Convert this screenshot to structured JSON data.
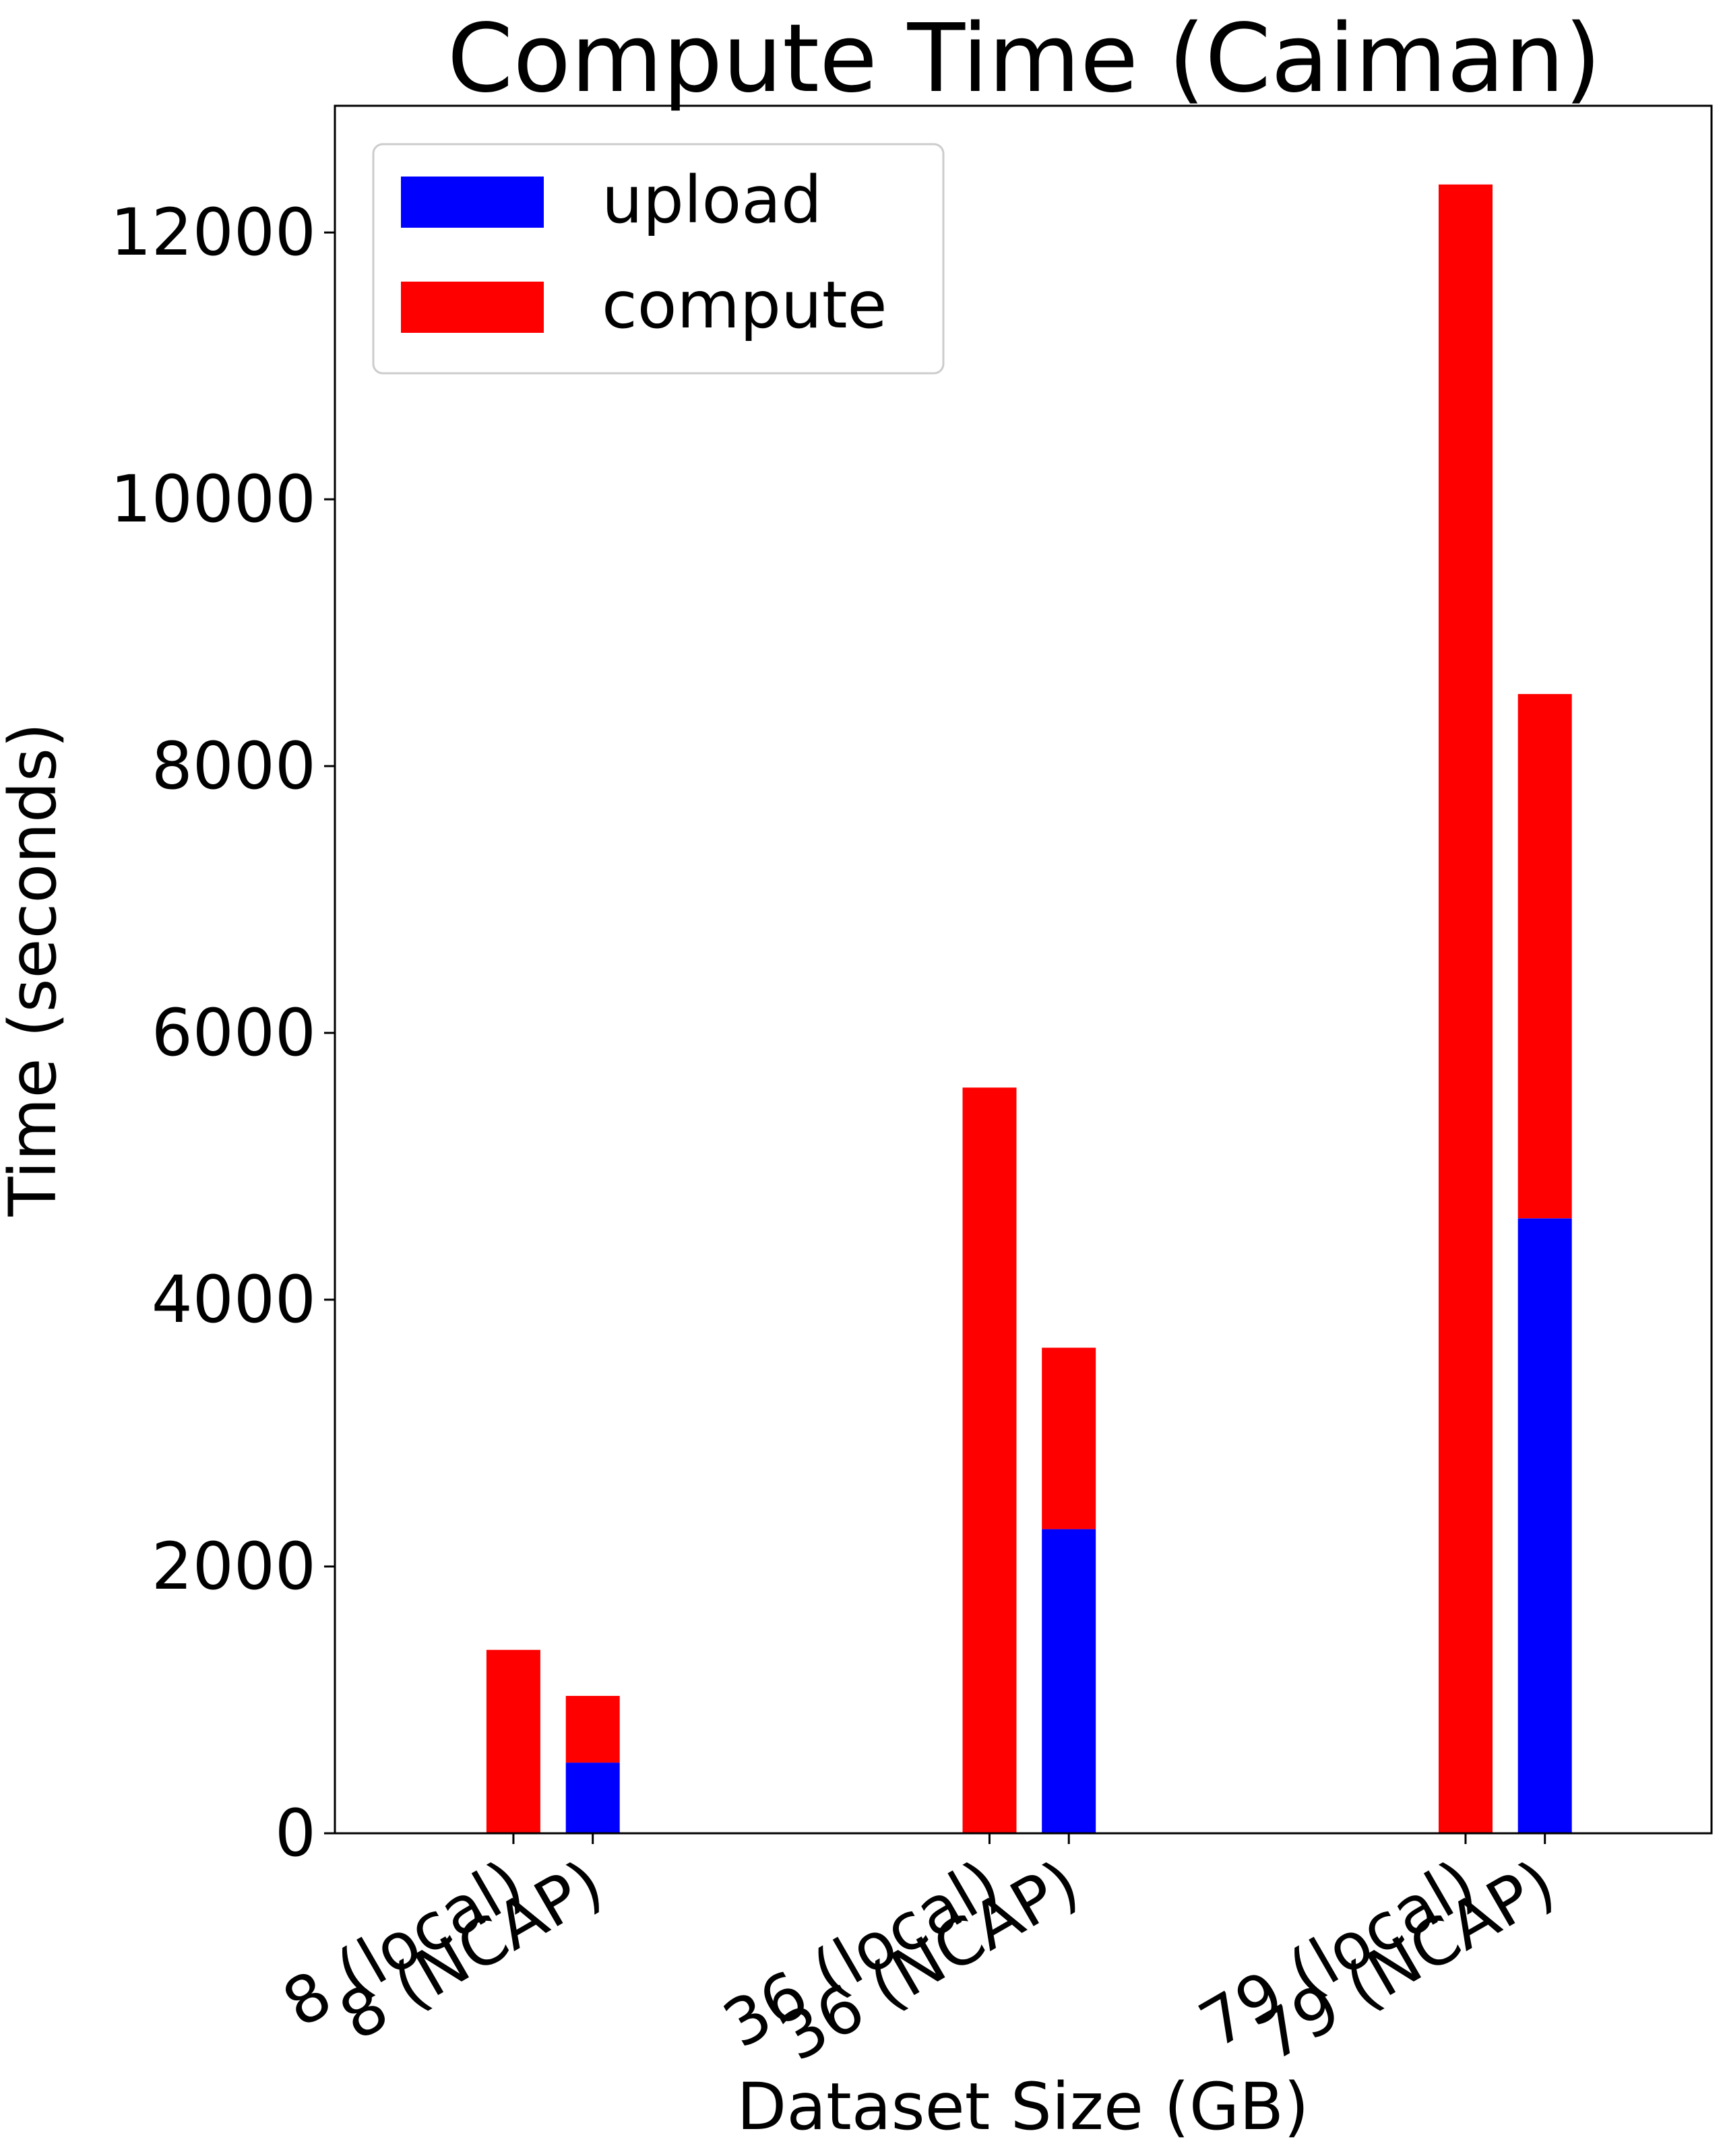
{
  "chart_data": {
    "type": "bar",
    "stacked": true,
    "title": "Compute Time (Caiman)",
    "xlabel": "Dataset Size (GB)",
    "ylabel": "Time (seconds)",
    "ylim": [
      0,
      12950
    ],
    "yticks": [
      0,
      2000,
      4000,
      6000,
      8000,
      10000,
      12000
    ],
    "x": [
      8,
      8.2,
      9.2,
      9.4,
      10.4,
      10.6
    ],
    "xlim": [
      7.55,
      11.02
    ],
    "categories": [
      "8 (local)",
      "8 (NCAP)",
      "36 (local)",
      "36 (NCAP)",
      "79 (local)",
      "79 (NCAP)"
    ],
    "series": [
      {
        "name": "upload",
        "color": "#0000ff",
        "values": [
          0,
          530,
          0,
          2280,
          0,
          4610
        ]
      },
      {
        "name": "compute",
        "color": "#ff0000",
        "values": [
          1375,
          500,
          5590,
          1360,
          12360,
          3930
        ]
      }
    ],
    "legend": {
      "position": "top-left"
    },
    "grid": false
  }
}
